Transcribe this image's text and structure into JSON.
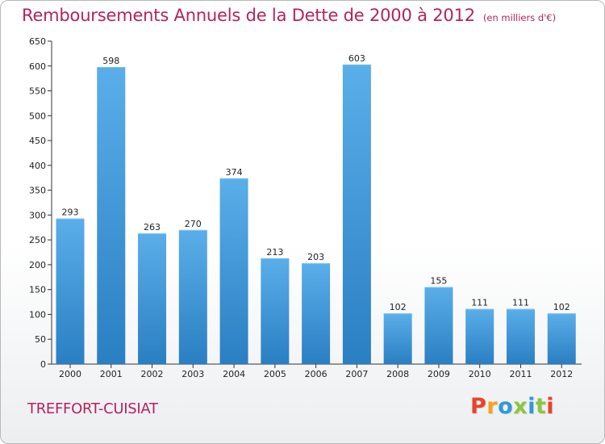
{
  "header": {
    "title": "Remboursements Annuels de la Dette de 2000 à 2012",
    "unit": "(en milliers d'€)"
  },
  "footer": {
    "commune": "TREFFORT-CUISIAT",
    "brand": "Proxiti"
  },
  "colors": {
    "title": "#b4235e",
    "bar_light": "#5aaee9",
    "bar_dark": "#2a7fc3",
    "brand_letters": [
      "#e8432b",
      "#f7a21b",
      "#2e9ad6",
      "#8cc63f",
      "#2e9ad6",
      "#8cc63f",
      "#e8432b"
    ]
  },
  "chart_data": {
    "type": "bar",
    "title": "Remboursements Annuels de la Dette de 2000 à 2012",
    "xlabel": "",
    "ylabel": "",
    "categories": [
      "2000",
      "2001",
      "2002",
      "2003",
      "2004",
      "2005",
      "2006",
      "2007",
      "2008",
      "2009",
      "2010",
      "2011",
      "2012"
    ],
    "values": [
      293,
      598,
      263,
      270,
      374,
      213,
      203,
      603,
      102,
      155,
      111,
      111,
      102
    ],
    "ylim": [
      0,
      650
    ],
    "yticks": [
      0,
      50,
      100,
      150,
      200,
      250,
      300,
      350,
      400,
      450,
      500,
      550,
      600,
      650
    ],
    "grid": false,
    "legend": "none"
  }
}
